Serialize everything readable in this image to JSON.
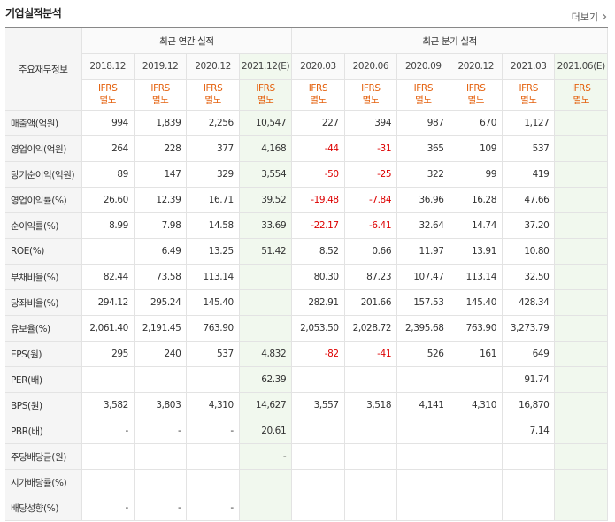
{
  "title": "기업실적분석",
  "more_label": "더보기",
  "header": {
    "corner": "주요재무정보",
    "annual_group": "최근 연간 실적",
    "quarter_group": "최근 분기 실적",
    "annual_dates": [
      "2018.12",
      "2019.12",
      "2020.12",
      "2021.12(E)"
    ],
    "quarter_dates": [
      "2020.03",
      "2020.06",
      "2020.09",
      "2020.12",
      "2021.03",
      "2021.06(E)"
    ],
    "std_line1": "IFRS",
    "std_line2": "별도"
  },
  "rows": [
    {
      "label": "매출액(억원)",
      "annual": [
        "994",
        "1,839",
        "2,256",
        "10,547"
      ],
      "quarter": [
        "227",
        "394",
        "987",
        "670",
        "1,127",
        ""
      ]
    },
    {
      "label": "영업이익(억원)",
      "annual": [
        "264",
        "228",
        "377",
        "4,168"
      ],
      "quarter": [
        "-44",
        "-31",
        "365",
        "109",
        "537",
        ""
      ]
    },
    {
      "label": "당기순이익(억원)",
      "annual": [
        "89",
        "147",
        "329",
        "3,554"
      ],
      "quarter": [
        "-50",
        "-25",
        "322",
        "99",
        "419",
        ""
      ]
    },
    {
      "label": "영업이익률(%)",
      "annual": [
        "26.60",
        "12.39",
        "16.71",
        "39.52"
      ],
      "quarter": [
        "-19.48",
        "-7.84",
        "36.96",
        "16.28",
        "47.66",
        ""
      ]
    },
    {
      "label": "순이익률(%)",
      "annual": [
        "8.99",
        "7.98",
        "14.58",
        "33.69"
      ],
      "quarter": [
        "-22.17",
        "-6.41",
        "32.64",
        "14.74",
        "37.20",
        ""
      ]
    },
    {
      "label": "ROE(%)",
      "annual": [
        "",
        "6.49",
        "13.25",
        "51.42"
      ],
      "quarter": [
        "8.52",
        "0.66",
        "11.97",
        "13.91",
        "10.80",
        ""
      ]
    },
    {
      "label": "부채비율(%)",
      "annual": [
        "82.44",
        "73.58",
        "113.14",
        ""
      ],
      "quarter": [
        "80.30",
        "87.23",
        "107.47",
        "113.14",
        "32.50",
        ""
      ]
    },
    {
      "label": "당좌비율(%)",
      "annual": [
        "294.12",
        "295.24",
        "145.40",
        ""
      ],
      "quarter": [
        "282.91",
        "201.66",
        "157.53",
        "145.40",
        "428.34",
        ""
      ]
    },
    {
      "label": "유보율(%)",
      "annual": [
        "2,061.40",
        "2,191.45",
        "763.90",
        ""
      ],
      "quarter": [
        "2,053.50",
        "2,028.72",
        "2,395.68",
        "763.90",
        "3,273.79",
        ""
      ]
    },
    {
      "label": "EPS(원)",
      "annual": [
        "295",
        "240",
        "537",
        "4,832"
      ],
      "quarter": [
        "-82",
        "-41",
        "526",
        "161",
        "649",
        ""
      ]
    },
    {
      "label": "PER(배)",
      "annual": [
        "",
        "",
        "",
        "62.39"
      ],
      "quarter": [
        "",
        "",
        "",
        "",
        "91.74",
        ""
      ]
    },
    {
      "label": "BPS(원)",
      "annual": [
        "3,582",
        "3,803",
        "4,310",
        "14,627"
      ],
      "quarter": [
        "3,557",
        "3,518",
        "4,141",
        "4,310",
        "16,870",
        ""
      ]
    },
    {
      "label": "PBR(배)",
      "annual": [
        "-",
        "-",
        "-",
        "20.61"
      ],
      "quarter": [
        "",
        "",
        "",
        "",
        "7.14",
        ""
      ]
    },
    {
      "label": "주당배당금(원)",
      "annual": [
        "",
        "",
        "",
        "-"
      ],
      "quarter": [
        "",
        "",
        "",
        "",
        "",
        ""
      ]
    },
    {
      "label": "시가배당률(%)",
      "annual": [
        "",
        "",
        "",
        ""
      ],
      "quarter": [
        "",
        "",
        "",
        "",
        "",
        ""
      ]
    },
    {
      "label": "배당성향(%)",
      "annual": [
        "-",
        "-",
        "-",
        ""
      ],
      "quarter": [
        "",
        "",
        "",
        "",
        "",
        ""
      ]
    }
  ],
  "colors": {
    "negative": "#dd0000",
    "standard_text": "#e4610e",
    "estimate_bg": "#f1f8ee"
  }
}
